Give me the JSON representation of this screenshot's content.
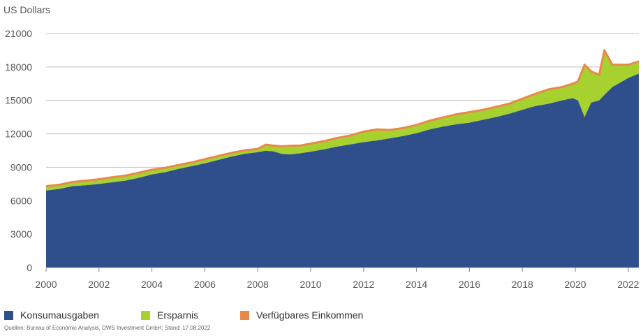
{
  "chart_data": {
    "type": "area",
    "ylabel": "US Dollars",
    "ylim": [
      0,
      21000
    ],
    "yticks": [
      "0",
      "3000",
      "6000",
      "9000",
      "12000",
      "15000",
      "18000",
      "21000"
    ],
    "xlim": [
      2000,
      2022.4
    ],
    "xticks": [
      "2000",
      "2002",
      "2004",
      "2006",
      "2008",
      "2010",
      "2012",
      "2014",
      "2016",
      "2018",
      "2020",
      "2022"
    ],
    "grid": "horizontal",
    "legend_position": "bottom",
    "series": [
      {
        "name": "Konsumausgaben",
        "color": "#2e4f8c",
        "points": [
          [
            2000.0,
            6900
          ],
          [
            2000.5,
            7050
          ],
          [
            2001.0,
            7300
          ],
          [
            2001.5,
            7380
          ],
          [
            2002.0,
            7500
          ],
          [
            2002.5,
            7650
          ],
          [
            2003.0,
            7800
          ],
          [
            2003.5,
            8050
          ],
          [
            2004.0,
            8350
          ],
          [
            2004.5,
            8550
          ],
          [
            2005.0,
            8850
          ],
          [
            2005.5,
            9100
          ],
          [
            2006.0,
            9350
          ],
          [
            2006.5,
            9650
          ],
          [
            2007.0,
            9950
          ],
          [
            2007.5,
            10200
          ],
          [
            2008.0,
            10350
          ],
          [
            2008.3,
            10480
          ],
          [
            2008.6,
            10420
          ],
          [
            2008.9,
            10200
          ],
          [
            2009.2,
            10150
          ],
          [
            2009.6,
            10250
          ],
          [
            2010.0,
            10400
          ],
          [
            2010.5,
            10600
          ],
          [
            2011.0,
            10850
          ],
          [
            2011.5,
            11050
          ],
          [
            2012.0,
            11250
          ],
          [
            2012.5,
            11400
          ],
          [
            2013.0,
            11600
          ],
          [
            2013.5,
            11800
          ],
          [
            2014.0,
            12050
          ],
          [
            2014.5,
            12400
          ],
          [
            2015.0,
            12650
          ],
          [
            2015.5,
            12850
          ],
          [
            2016.0,
            13000
          ],
          [
            2016.5,
            13250
          ],
          [
            2017.0,
            13500
          ],
          [
            2017.5,
            13800
          ],
          [
            2018.0,
            14150
          ],
          [
            2018.5,
            14500
          ],
          [
            2019.0,
            14700
          ],
          [
            2019.5,
            15000
          ],
          [
            2019.9,
            15200
          ],
          [
            2020.1,
            15000
          ],
          [
            2020.35,
            13500
          ],
          [
            2020.6,
            14800
          ],
          [
            2020.9,
            15000
          ],
          [
            2021.1,
            15500
          ],
          [
            2021.4,
            16200
          ],
          [
            2021.7,
            16600
          ],
          [
            2022.0,
            17000
          ],
          [
            2022.4,
            17400
          ]
        ]
      },
      {
        "name": "Ersparnis",
        "color": "#a7d12f",
        "points": [
          [
            2000.0,
            400
          ],
          [
            2000.5,
            380
          ],
          [
            2001.0,
            380
          ],
          [
            2001.5,
            420
          ],
          [
            2002.0,
            420
          ],
          [
            2002.5,
            450
          ],
          [
            2003.0,
            450
          ],
          [
            2003.5,
            460
          ],
          [
            2004.0,
            430
          ],
          [
            2004.5,
            400
          ],
          [
            2005.0,
            350
          ],
          [
            2005.5,
            340
          ],
          [
            2006.0,
            380
          ],
          [
            2006.5,
            360
          ],
          [
            2007.0,
            340
          ],
          [
            2007.5,
            320
          ],
          [
            2008.0,
            300
          ],
          [
            2008.3,
            550
          ],
          [
            2008.6,
            520
          ],
          [
            2008.9,
            680
          ],
          [
            2009.2,
            780
          ],
          [
            2009.6,
            700
          ],
          [
            2010.0,
            720
          ],
          [
            2010.5,
            740
          ],
          [
            2011.0,
            780
          ],
          [
            2011.5,
            800
          ],
          [
            2012.0,
            950
          ],
          [
            2012.5,
            1000
          ],
          [
            2013.0,
            750
          ],
          [
            2013.5,
            720
          ],
          [
            2014.0,
            750
          ],
          [
            2014.5,
            780
          ],
          [
            2015.0,
            820
          ],
          [
            2015.5,
            900
          ],
          [
            2016.0,
            950
          ],
          [
            2016.5,
            900
          ],
          [
            2017.0,
            920
          ],
          [
            2017.5,
            900
          ],
          [
            2018.0,
            1000
          ],
          [
            2018.5,
            1100
          ],
          [
            2019.0,
            1300
          ],
          [
            2019.5,
            1200
          ],
          [
            2019.9,
            1300
          ],
          [
            2020.1,
            1700
          ],
          [
            2020.35,
            4700
          ],
          [
            2020.6,
            2800
          ],
          [
            2020.9,
            2300
          ],
          [
            2021.1,
            4000
          ],
          [
            2021.4,
            2000
          ],
          [
            2021.7,
            1600
          ],
          [
            2022.0,
            1200
          ],
          [
            2022.4,
            1100
          ]
        ]
      },
      {
        "name": "Verfügbares Einkommen",
        "color": "#e8894a",
        "points": [
          [
            2000.0,
            7300
          ],
          [
            2000.5,
            7430
          ],
          [
            2001.0,
            7680
          ],
          [
            2001.5,
            7800
          ],
          [
            2002.0,
            7920
          ],
          [
            2002.5,
            8100
          ],
          [
            2003.0,
            8250
          ],
          [
            2003.5,
            8510
          ],
          [
            2004.0,
            8780
          ],
          [
            2004.5,
            8950
          ],
          [
            2005.0,
            9200
          ],
          [
            2005.5,
            9440
          ],
          [
            2006.0,
            9730
          ],
          [
            2006.5,
            10010
          ],
          [
            2007.0,
            10290
          ],
          [
            2007.5,
            10520
          ],
          [
            2008.0,
            10650
          ],
          [
            2008.3,
            11030
          ],
          [
            2008.6,
            10940
          ],
          [
            2008.9,
            10880
          ],
          [
            2009.2,
            10930
          ],
          [
            2009.6,
            10950
          ],
          [
            2010.0,
            11120
          ],
          [
            2010.5,
            11340
          ],
          [
            2011.0,
            11630
          ],
          [
            2011.5,
            11850
          ],
          [
            2012.0,
            12200
          ],
          [
            2012.5,
            12400
          ],
          [
            2013.0,
            12350
          ],
          [
            2013.5,
            12520
          ],
          [
            2014.0,
            12800
          ],
          [
            2014.5,
            13180
          ],
          [
            2015.0,
            13470
          ],
          [
            2015.5,
            13750
          ],
          [
            2016.0,
            13950
          ],
          [
            2016.5,
            14150
          ],
          [
            2017.0,
            14420
          ],
          [
            2017.5,
            14700
          ],
          [
            2018.0,
            15150
          ],
          [
            2018.5,
            15600
          ],
          [
            2019.0,
            16000
          ],
          [
            2019.5,
            16200
          ],
          [
            2019.9,
            16500
          ],
          [
            2020.1,
            16700
          ],
          [
            2020.35,
            18200
          ],
          [
            2020.6,
            17600
          ],
          [
            2020.9,
            17300
          ],
          [
            2021.1,
            19500
          ],
          [
            2021.4,
            18200
          ],
          [
            2021.7,
            18200
          ],
          [
            2022.0,
            18200
          ],
          [
            2022.4,
            18500
          ]
        ]
      }
    ]
  },
  "legend": [
    {
      "label": "Konsumausgaben",
      "color": "#2e4f8c"
    },
    {
      "label": "Ersparnis",
      "color": "#a7d12f"
    },
    {
      "label": "Verfügbares Einkommen",
      "color": "#e8894a"
    }
  ],
  "source": "Quellen: Bureau of Economic Analysis, DWS Investment GmbH; Stand: 17.08.2022"
}
